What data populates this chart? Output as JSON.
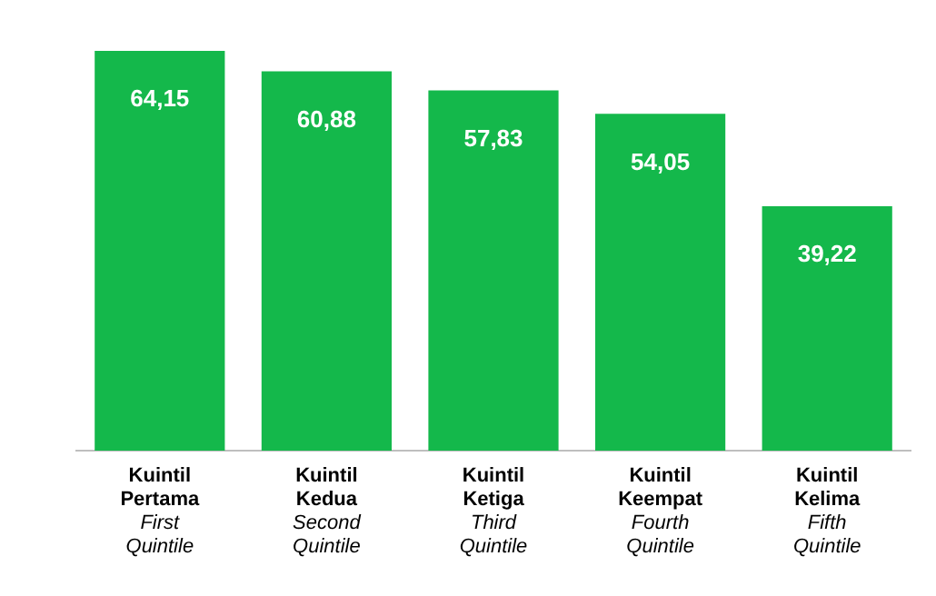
{
  "chart_data": {
    "type": "bar",
    "categories": [
      "Kuintil Pertama\nFirst Quintile",
      "Kuintil Kedua\nSecond Quintile",
      "Kuintil Ketiga\nThird Quintile",
      "Kuintil Keempat\nFourth Quintile",
      "Kuintil Kelima\nFifth Quintile"
    ],
    "values": [
      64.15,
      60.88,
      57.83,
      54.05,
      39.22
    ],
    "value_labels": [
      "64,15",
      "60,88",
      "57,83",
      "54,05",
      "39,22"
    ],
    "color": "#14b84b",
    "tick_labels": "x",
    "grid": false,
    "legend": false
  }
}
